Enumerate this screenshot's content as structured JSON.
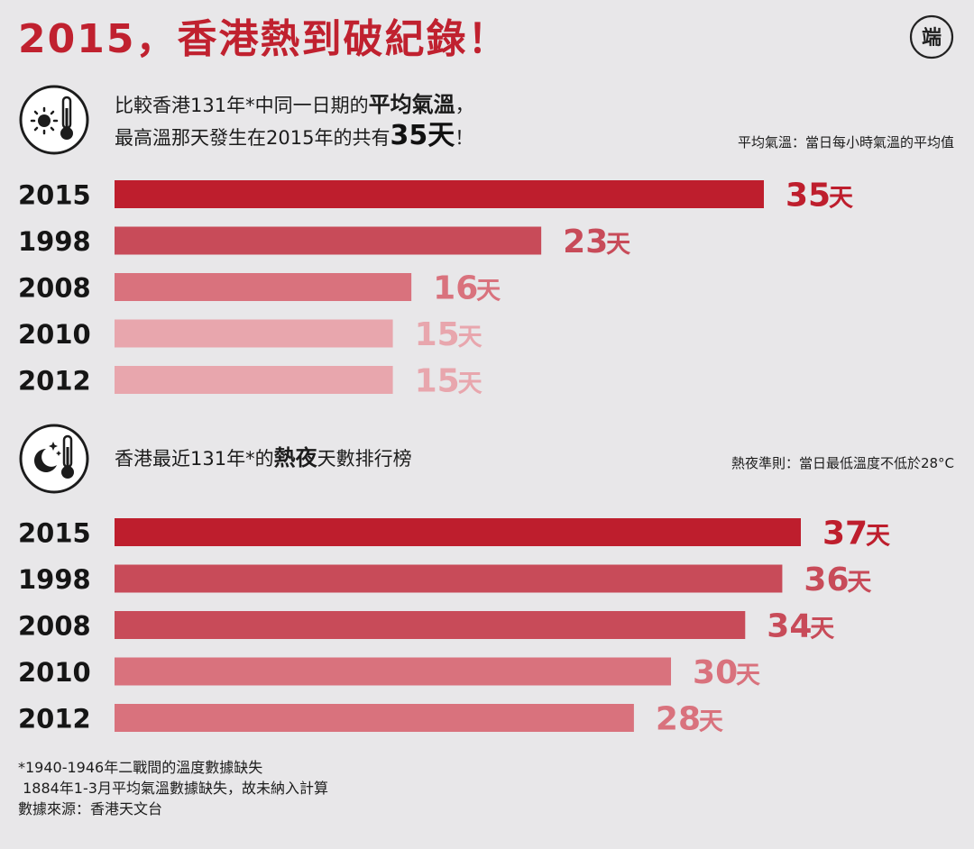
{
  "title": "2015，香港熱到破紀錄！",
  "logo_text": "端",
  "colors": {
    "rank1": "#be1e2d",
    "rank2": "#c84b59",
    "rank3": "#d9727d",
    "rank4": "#e8a6ad",
    "title_red": "#c0212f"
  },
  "section1": {
    "icon": "sun-thermometer-icon",
    "line1_pre": "比較香港131年*中同一日期的",
    "line1_highlight": "平均氣溫",
    "line1_post": "，",
    "line2_pre": "最高溫那天發生在2015年的共有",
    "line2_highlight": "35天",
    "line2_post": "！",
    "note": "平均氣溫：當日每小時氣溫的平均值"
  },
  "section2": {
    "icon": "moon-stars-thermometer-icon",
    "line1_pre": "香港最近131年*的",
    "line1_highlight": "熱夜",
    "line1_post": "天數排行榜",
    "note": "熱夜準則：當日最低溫度不低於28°C"
  },
  "chart_data": [
    {
      "type": "bar",
      "orientation": "horizontal",
      "title": "比較香港131年*中同一日期的平均氣溫，最高溫那天發生在2015年的共有35天！",
      "categories": [
        "2015",
        "1998",
        "2008",
        "2010",
        "2012"
      ],
      "values": [
        35,
        23,
        16,
        15,
        15
      ],
      "value_suffix": "天",
      "xlim": [
        0,
        35
      ],
      "color_rank": [
        1,
        2,
        3,
        4,
        4
      ]
    },
    {
      "type": "bar",
      "orientation": "horizontal",
      "title": "香港最近131年*的熱夜天數排行榜",
      "categories": [
        "2015",
        "1998",
        "2008",
        "2010",
        "2012"
      ],
      "values": [
        37,
        36,
        34,
        30,
        28
      ],
      "value_suffix": "天",
      "xlim": [
        0,
        37
      ],
      "color_rank": [
        1,
        2,
        2,
        3,
        3
      ]
    }
  ],
  "footnotes": [
    "*1940-1946年二戰間的溫度數據缺失",
    " 1884年1-3月平均氣溫數據缺失，故未納入計算",
    "數據來源：香港天文台"
  ]
}
